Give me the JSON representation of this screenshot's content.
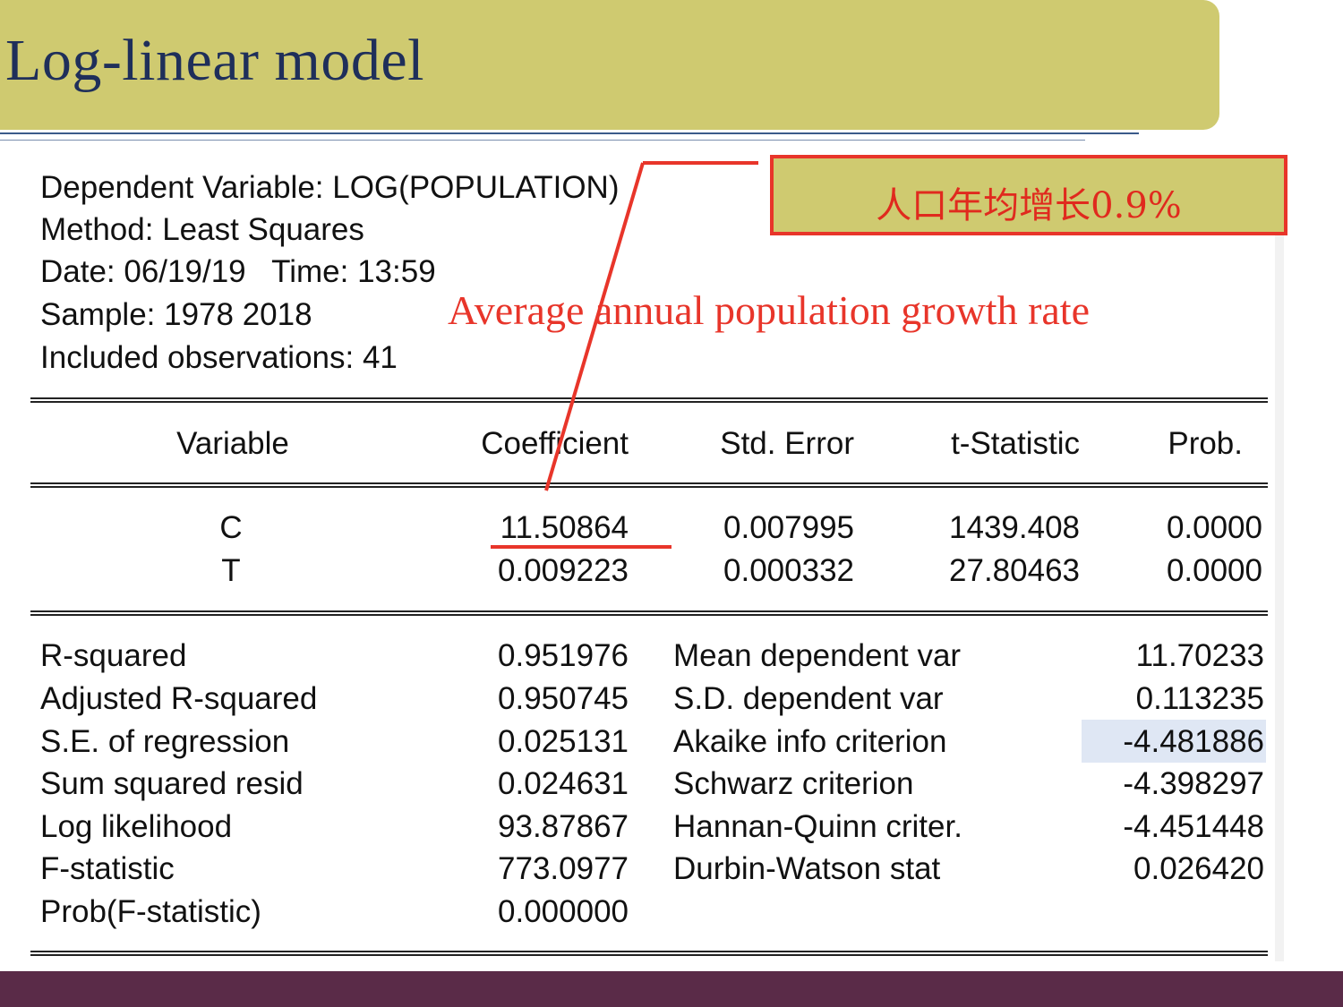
{
  "slide": {
    "title": "Log-linear model"
  },
  "callout": {
    "text": "人口年均增长0.9%",
    "annotation": "Average annual population growth rate"
  },
  "header": {
    "dependent_variable": "Dependent Variable: LOG(POPULATION)",
    "method": "Method: Least Squares",
    "date": "Date: 06/19/19   Time: 13:59",
    "sample": "Sample: 1978 2018",
    "observations": "Included observations: 41"
  },
  "table": {
    "columns": [
      "Variable",
      "Coefficient",
      "Std. Error",
      "t-Statistic",
      "Prob."
    ],
    "rows": [
      [
        "C",
        "11.50864",
        "0.007995",
        "1439.408",
        "0.0000"
      ],
      [
        "T",
        "0.009223",
        "0.000332",
        "27.80463",
        "0.0000"
      ]
    ]
  },
  "stats": [
    [
      "R-squared",
      "0.951976",
      "Mean dependent var",
      "11.70233"
    ],
    [
      "Adjusted R-squared",
      "0.950745",
      "S.D. dependent var",
      "0.113235"
    ],
    [
      "S.E. of regression",
      "0.025131",
      "Akaike info criterion",
      "-4.481886"
    ],
    [
      "Sum squared resid",
      "0.024631",
      "Schwarz criterion",
      "-4.398297"
    ],
    [
      "Log likelihood",
      "93.87867",
      "Hannan-Quinn criter.",
      "-4.451448"
    ],
    [
      "F-statistic",
      "773.0977",
      "Durbin-Watson stat",
      "0.026420"
    ],
    [
      "Prob(F-statistic)",
      "0.000000",
      "",
      ""
    ]
  ],
  "colors": {
    "accent_bar": "#cfca70",
    "annotation_red": "#e8352a",
    "title_navy": "#1f2f5a",
    "footer": "#5a2b48"
  }
}
